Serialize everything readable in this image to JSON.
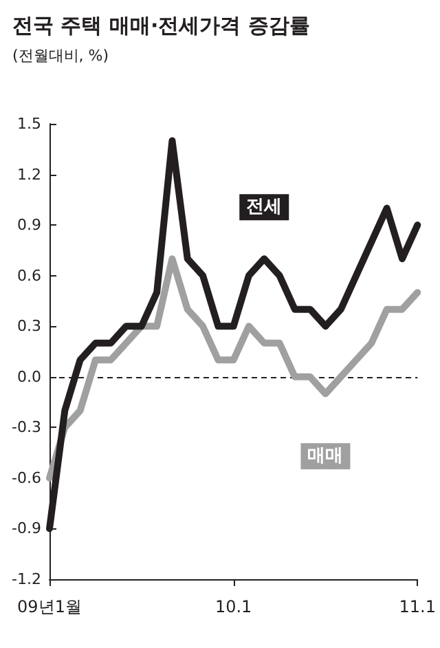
{
  "chart_data": {
    "type": "line",
    "title": "전국 주택 매매·전세가격 증감률",
    "subtitle": "(전월대비, %)",
    "categories": [
      "09년1월",
      null,
      null,
      null,
      null,
      null,
      null,
      null,
      null,
      null,
      null,
      null,
      "10.1",
      null,
      null,
      null,
      null,
      null,
      null,
      null,
      null,
      null,
      null,
      null,
      "11.1"
    ],
    "series": [
      {
        "name": "전세",
        "color": "#231f20",
        "values": [
          -0.9,
          -0.2,
          0.1,
          0.2,
          0.2,
          0.3,
          0.3,
          0.5,
          1.4,
          0.7,
          0.6,
          0.3,
          0.3,
          0.6,
          0.7,
          0.6,
          0.4,
          0.4,
          0.3,
          0.4,
          0.6,
          0.8,
          1.0,
          0.7,
          0.9
        ]
      },
      {
        "name": "매매",
        "color": "#a0a0a0",
        "values": [
          -0.6,
          -0.3,
          -0.2,
          0.1,
          0.1,
          0.2,
          0.3,
          0.3,
          0.7,
          0.4,
          0.3,
          0.1,
          0.1,
          0.3,
          0.2,
          0.2,
          0.0,
          0.0,
          -0.1,
          0.0,
          0.1,
          0.2,
          0.4,
          0.4,
          0.5
        ]
      }
    ],
    "ylim": [
      -1.2,
      1.5
    ],
    "yticks": [
      -1.2,
      -0.9,
      -0.6,
      -0.3,
      {
        "value": 0,
        "label": "0.0"
      },
      0.3,
      0.6,
      0.9,
      1.2,
      1.5
    ],
    "ref_lines": [
      {
        "axis": "y",
        "value": 0,
        "line_style": "dashed",
        "color": "#231f20"
      }
    ],
    "grid": false,
    "legend": false,
    "marker": "none",
    "line_style": "solid"
  }
}
